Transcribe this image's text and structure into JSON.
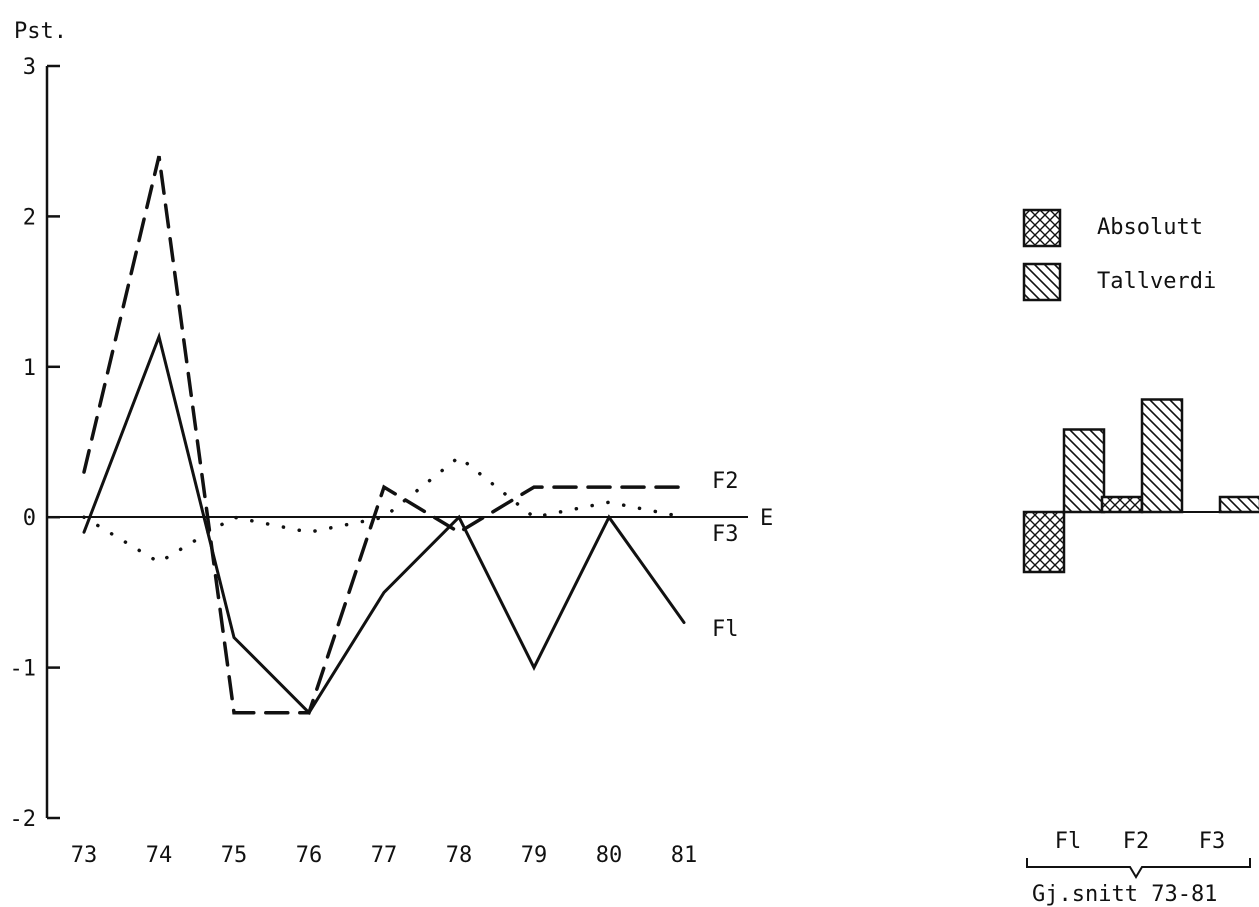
{
  "chart_data": [
    {
      "type": "line",
      "ylabel": "Pst.",
      "xlabel": "E",
      "categories": [
        "73",
        "74",
        "75",
        "76",
        "77",
        "78",
        "79",
        "80",
        "81"
      ],
      "ylim": [
        -2,
        3
      ],
      "yticks": [
        "3",
        "2",
        "1",
        "0",
        "-1",
        "-2"
      ],
      "grid": false,
      "series": [
        {
          "name": "F1",
          "style": "solid",
          "values": [
            -0.1,
            1.2,
            -0.8,
            -1.3,
            -0.5,
            0.0,
            -1.0,
            0.0,
            -0.7
          ]
        },
        {
          "name": "F2",
          "style": "dashed",
          "values": [
            0.3,
            2.4,
            -1.3,
            -1.3,
            0.2,
            -0.1,
            0.2,
            0.2,
            0.2
          ]
        },
        {
          "name": "F3",
          "style": "dotted",
          "values": [
            0.0,
            -0.3,
            0.0,
            -0.1,
            0.0,
            0.4,
            0.0,
            0.1,
            0.0
          ]
        }
      ]
    },
    {
      "type": "bar",
      "categories": [
        "Fl",
        "F2",
        "F3"
      ],
      "group_label": "Gj.snitt 73-81",
      "series": [
        {
          "name": "Absolutt",
          "pattern": "crosshatch",
          "values": [
            -0.4,
            0.1,
            0.0
          ]
        },
        {
          "name": "Tallverdi",
          "pattern": "diagonal",
          "values": [
            0.55,
            0.75,
            0.1
          ]
        }
      ]
    }
  ],
  "labels": {
    "f1_end": "Fl",
    "f2_end": "F2",
    "f3_end": "F3"
  }
}
